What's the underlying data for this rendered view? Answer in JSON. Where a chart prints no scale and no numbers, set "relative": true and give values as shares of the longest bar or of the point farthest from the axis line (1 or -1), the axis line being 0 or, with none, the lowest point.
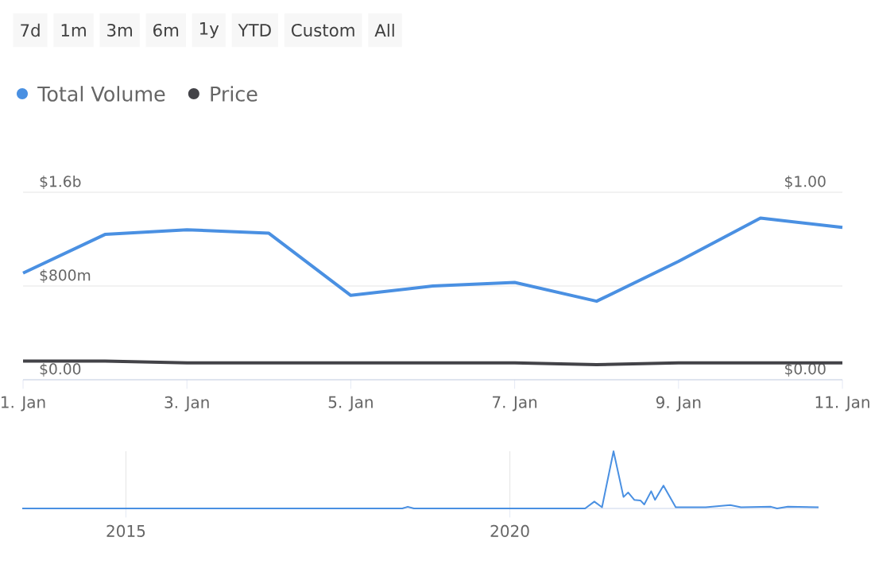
{
  "chart_data": [
    {
      "type": "line",
      "annotations": [
        "7d",
        "1m",
        "3m",
        "6m",
        "1y",
        "YTD",
        "Custom",
        "All"
      ],
      "x": [
        "--01-01",
        "--01-02",
        "--01-03",
        "--01-04",
        "--01-05",
        "--01-06",
        "--01-07",
        "--01-08",
        "--01-09",
        "--01-10",
        "--01-11"
      ],
      "series": [
        {
          "name": "Total Volume",
          "color": "#4a90e2",
          "values": [
            910000000,
            1240000000,
            1280000000,
            1250000000,
            720000000,
            800000000,
            830000000,
            670000000,
            1010000000,
            1380000000,
            1300000000
          ]
        },
        {
          "name": "Price",
          "color": "#434348",
          "axis": "y2",
          "values": [
            0.1,
            0.1,
            0.09,
            0.09,
            0.09,
            0.09,
            0.09,
            0.08,
            0.09,
            0.09,
            0.09
          ]
        }
      ],
      "xlim": [
        "--01-01",
        "--01-11"
      ],
      "xticks": [
        {
          "value": "--01-01",
          "label": "1. Jan"
        },
        {
          "value": "--01-03",
          "label": "3. Jan"
        },
        {
          "value": "--01-05",
          "label": "5. Jan"
        },
        {
          "value": "--01-07",
          "label": "7. Jan"
        },
        {
          "value": "--01-09",
          "label": "9. Jan"
        },
        {
          "value": "--01-11",
          "label": "11. Jan"
        }
      ],
      "ylim": [
        0,
        1600000000
      ],
      "yticks": [
        {
          "value": 0,
          "label": "$0.00"
        },
        {
          "value": 800000000,
          "label": "$800m"
        },
        {
          "value": 1600000000,
          "label": "$1.6b"
        }
      ],
      "y2lim": [
        0,
        1
      ],
      "y2ticks": [
        {
          "value": 0,
          "label": "$0.00"
        },
        {
          "value": 1,
          "label": "$1.00"
        }
      ],
      "grid": "y",
      "legend": "top left",
      "marker": "none"
    },
    {
      "type": "line",
      "relative": true,
      "grid": "x",
      "x": [
        2013.65,
        2018.6,
        2018.67,
        2018.75,
        2020.98,
        2021.1,
        2021.2,
        2021.35,
        2021.48,
        2021.54,
        2021.62,
        2021.7,
        2021.75,
        2021.84,
        2021.89,
        2022.0,
        2022.16,
        2022.55,
        2022.87,
        2023.01,
        2023.4,
        2023.48,
        2023.62,
        2024.02
      ],
      "series": [
        {
          "color": "#4a90e2",
          "values": [
            0,
            0,
            0.03,
            0,
            0,
            0.12,
            0.02,
            1,
            0.2,
            0.28,
            0.15,
            0.14,
            0.07,
            0.3,
            0.15,
            0.4,
            0.02,
            0.02,
            0.06,
            0.02,
            0.03,
            0,
            0.03,
            0.02
          ]
        }
      ],
      "xlim": [
        2013.65,
        2024.02
      ],
      "xticks": [
        2015,
        2020
      ]
    }
  ]
}
